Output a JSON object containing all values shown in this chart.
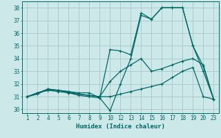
{
  "xlabel": "Humidex (Indice chaleur)",
  "bg_color": "#cce8e8",
  "grid_color": "#aacccc",
  "line_color": "#006666",
  "ylim": [
    29.7,
    38.5
  ],
  "yticks": [
    30,
    31,
    32,
    33,
    34,
    35,
    36,
    37,
    38
  ],
  "xtick_labels": [
    "1",
    "2",
    "4",
    "5",
    "6",
    "7",
    "8",
    "9",
    "10",
    "12",
    "13",
    "14",
    "15",
    "16",
    "17",
    "18",
    "19",
    "20",
    "23"
  ],
  "lines": [
    {
      "xi": [
        0,
        1,
        2,
        3,
        4,
        5,
        6,
        7,
        8,
        9,
        10,
        11,
        12,
        13,
        14,
        15,
        16,
        17,
        18
      ],
      "y": [
        31.0,
        31.3,
        31.5,
        31.5,
        31.4,
        31.3,
        31.3,
        30.9,
        29.9,
        32.0,
        34.0,
        37.4,
        37.1,
        38.0,
        38.0,
        38.0,
        35.0,
        33.4,
        30.8
      ]
    },
    {
      "xi": [
        0,
        1,
        2,
        3,
        4,
        5,
        6,
        7,
        8,
        9,
        10,
        11,
        12,
        13,
        14,
        15,
        16,
        17,
        18
      ],
      "y": [
        31.0,
        31.3,
        31.6,
        31.5,
        31.4,
        31.2,
        31.1,
        31.0,
        32.2,
        33.0,
        33.5,
        34.0,
        33.0,
        33.2,
        33.5,
        33.8,
        34.0,
        33.5,
        30.8
      ]
    },
    {
      "xi": [
        0,
        1,
        2,
        3,
        4,
        5,
        6,
        7,
        8,
        9,
        10,
        11,
        12,
        13,
        14,
        15,
        16,
        17,
        18
      ],
      "y": [
        31.0,
        31.2,
        31.6,
        31.5,
        31.3,
        31.1,
        31.0,
        30.9,
        34.7,
        34.6,
        34.3,
        37.6,
        37.1,
        38.0,
        38.0,
        38.0,
        35.0,
        33.0,
        30.8
      ]
    },
    {
      "xi": [
        0,
        1,
        2,
        3,
        4,
        5,
        6,
        7,
        8,
        9,
        10,
        11,
        12,
        13,
        14,
        15,
        16,
        17,
        18
      ],
      "y": [
        31.0,
        31.3,
        31.5,
        31.4,
        31.3,
        31.2,
        31.1,
        31.0,
        31.0,
        31.2,
        31.4,
        31.6,
        31.8,
        32.0,
        32.5,
        33.0,
        33.3,
        31.0,
        30.8
      ]
    }
  ]
}
